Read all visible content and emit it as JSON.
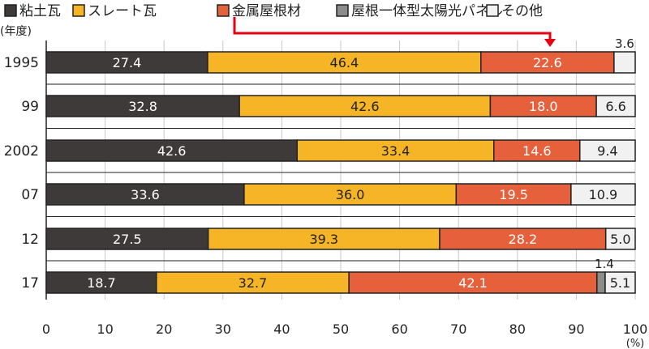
{
  "chart_data": {
    "type": "bar",
    "orientation": "horizontal",
    "stacked": true,
    "title": "",
    "ylabel": "(年度)",
    "xlabel": "(%)",
    "xlim": [
      0,
      100
    ],
    "xticks": [
      0,
      10,
      20,
      30,
      40,
      50,
      60,
      70,
      80,
      90,
      100
    ],
    "grid": true,
    "legend_position": "top",
    "categories": [
      "1995",
      "99",
      "2002",
      "07",
      "12",
      "17"
    ],
    "series": [
      {
        "name": "粘土瓦",
        "color": "#3e3a39",
        "label_color": "#ffffff",
        "values": [
          27.4,
          32.8,
          42.6,
          33.6,
          27.5,
          18.7
        ]
      },
      {
        "name": "スレート瓦",
        "color": "#f6b526",
        "label_color": "#222222",
        "values": [
          46.4,
          42.6,
          33.4,
          36.0,
          39.3,
          32.7
        ]
      },
      {
        "name": "金属屋根材",
        "color": "#e5603b",
        "label_color": "#ffffff",
        "values": [
          22.6,
          18.0,
          14.6,
          19.5,
          28.2,
          42.1
        ]
      },
      {
        "name": "屋根一体型太陽光パネル",
        "color": "#8c8c8c",
        "label_color": "#222222",
        "values": [
          0,
          0,
          0,
          0,
          0,
          1.4
        ]
      },
      {
        "name": "その他",
        "color": "#f1f1f1",
        "label_color": "#222222",
        "values": [
          3.6,
          6.6,
          9.4,
          10.9,
          5.0,
          5.1
        ]
      }
    ],
    "labels": [
      [
        "27.4",
        "46.4",
        "22.6",
        "",
        "3.6"
      ],
      [
        "32.8",
        "42.6",
        "18.0",
        "",
        "6.6"
      ],
      [
        "42.6",
        "33.4",
        "14.6",
        "",
        "9.4"
      ],
      [
        "33.6",
        "36.0",
        "19.5",
        "",
        "10.9"
      ],
      [
        "27.5",
        "39.3",
        "28.2",
        "",
        "5.0"
      ],
      [
        "18.7",
        "32.7",
        "42.1",
        "1.4",
        "5.1"
      ]
    ],
    "outside_labels": [
      [
        0,
        4
      ],
      [
        5,
        3
      ]
    ],
    "annotation": "arrow from 金属屋根材 legend to 金属屋根材 bar"
  }
}
